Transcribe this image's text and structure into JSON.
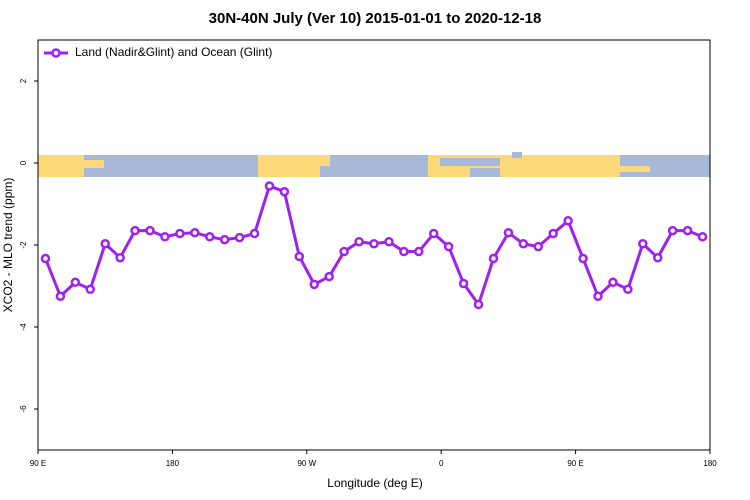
{
  "chart_data": {
    "type": "line",
    "title": "30N-40N July (Ver 10)   2015-01-01 to 2020-12-18",
    "x_label": "Longitude (deg E)",
    "y_label": "XCO2 - MLO trend (ppm)",
    "xlim": [
      90,
      540
    ],
    "ylim": [
      -7,
      3
    ],
    "xticks": [
      {
        "value": 90,
        "label": "90 E"
      },
      180,
      {
        "value": 270,
        "label": "90 W"
      },
      {
        "value": 360,
        "label": "0"
      },
      {
        "value": 450,
        "label": "90 E"
      },
      {
        "value": 540,
        "label": "180"
      }
    ],
    "yticks": [
      -6,
      -4,
      -2,
      0,
      2
    ],
    "legend": "top-left",
    "x": [
      95,
      105,
      115,
      125,
      135,
      145,
      155,
      165,
      175,
      185,
      195,
      205,
      215,
      225,
      235,
      245,
      255,
      265,
      275,
      285,
      295,
      305,
      315,
      325,
      335,
      345,
      355,
      365,
      375,
      385,
      395,
      405,
      415,
      425,
      435,
      445,
      455,
      465,
      475,
      485,
      495,
      505,
      515,
      525,
      535
    ],
    "series": [
      {
        "name": "Land (Nadir&Glint) and Ocean (Glint)",
        "color": "#a020f0",
        "values": [
          -2.33,
          -3.25,
          -2.91,
          -3.08,
          -1.97,
          -2.31,
          -1.65,
          -1.65,
          -1.8,
          -1.72,
          -1.7,
          -1.8,
          -1.87,
          -1.82,
          -1.72,
          -0.56,
          -0.7,
          -2.28,
          -2.96,
          -2.77,
          -2.16,
          -1.92,
          -1.97,
          -1.92,
          -2.16,
          -2.16,
          -1.72,
          -2.04,
          -2.94,
          -3.45,
          -2.33,
          -1.7,
          -1.97,
          -2.04,
          -1.72,
          -1.41,
          -2.33,
          -3.25,
          -2.91,
          -3.08,
          -1.97,
          -2.31,
          -1.65,
          -1.65,
          -1.8
        ]
      }
    ]
  }
}
